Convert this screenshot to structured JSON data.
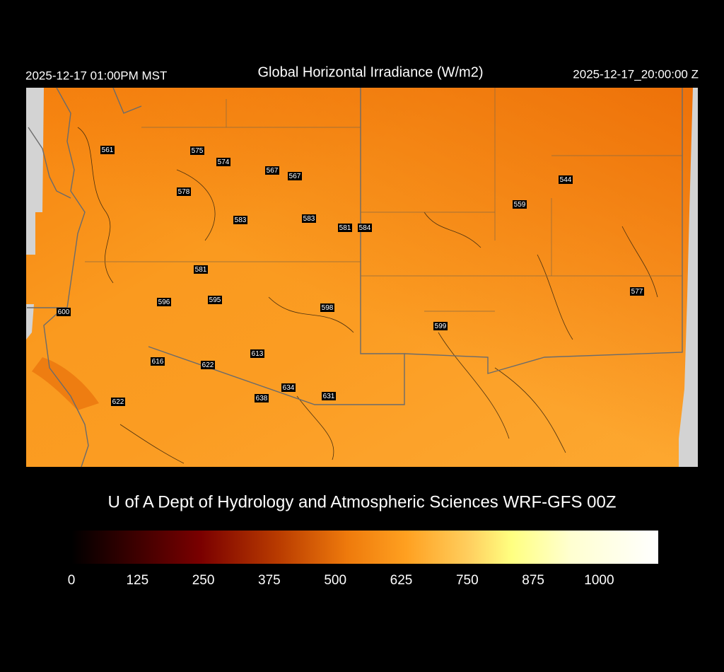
{
  "header": {
    "local_time": "2025-12-17 01:00PM MST",
    "title": "Global Horizontal Irradiance (W/m2)",
    "utc_time": "2025-12-17_20:00:00 Z"
  },
  "map": {
    "stations": [
      561,
      575,
      574,
      567,
      567,
      578,
      583,
      583,
      581,
      584,
      559,
      544,
      581,
      596,
      595,
      598,
      600,
      599,
      577,
      613,
      616,
      622,
      634,
      638,
      631,
      622
    ]
  },
  "credit": "U of A Dept of Hydrology and Atmospheric Sciences WRF-GFS 00Z",
  "colorbar": {
    "lim": [
      0,
      1112
    ],
    "ticks": [
      0,
      125,
      250,
      375,
      500,
      625,
      750,
      875,
      1000
    ]
  }
}
